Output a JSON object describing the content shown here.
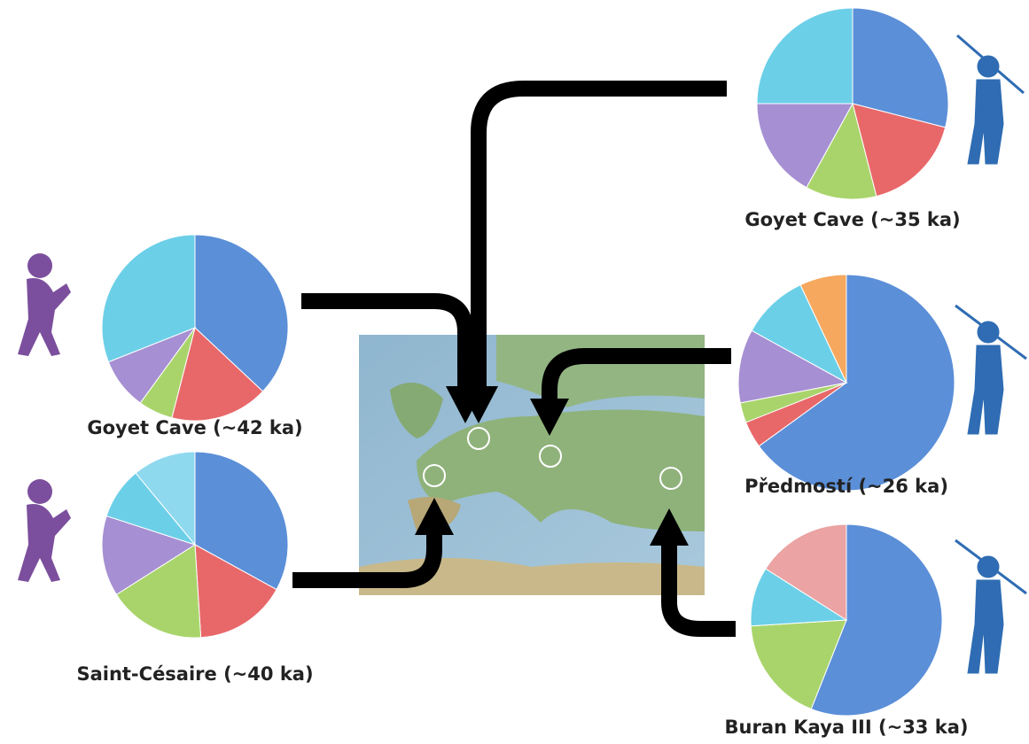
{
  "chart_data": [
    {
      "type": "pie",
      "title": "Goyet Cave (~42 ka)",
      "categories": [
        null,
        null,
        null,
        null,
        null
      ],
      "values": [
        37,
        17,
        6,
        9,
        31
      ],
      "colors": [
        "#5b8fd8",
        "#e8686a",
        "#a9d46b",
        "#a68fd2",
        "#6ccfe8"
      ]
    },
    {
      "type": "pie",
      "title": "Saint-Césaire (~40 ka)",
      "categories": [
        null,
        null,
        null,
        null,
        null,
        null
      ],
      "values": [
        33,
        16,
        17,
        14,
        9,
        11
      ],
      "colors": [
        "#5b8fd8",
        "#e8686a",
        "#a9d46b",
        "#a68fd2",
        "#6ccfe8",
        "#8fd9ef"
      ]
    },
    {
      "type": "pie",
      "title": "Goyet Cave (~35 ka)",
      "categories": [
        null,
        null,
        null,
        null,
        null
      ],
      "values": [
        29,
        17,
        12,
        17,
        25
      ],
      "colors": [
        "#5b8fd8",
        "#e8686a",
        "#a9d46b",
        "#a68fd2",
        "#6ccfe8"
      ]
    },
    {
      "type": "pie",
      "title": "Předmostí (~26 ka)",
      "categories": [
        null,
        null,
        null,
        null,
        null,
        null
      ],
      "values": [
        65,
        4,
        3,
        11,
        10,
        7
      ],
      "colors": [
        "#5b8fd8",
        "#e8686a",
        "#a9d46b",
        "#a68fd2",
        "#6ccfe8",
        "#f5a85e"
      ]
    },
    {
      "type": "pie",
      "title": "Buran Kaya III (~33 ka)",
      "categories": [
        null,
        null,
        null,
        null
      ],
      "values": [
        56,
        18,
        10,
        16
      ],
      "colors": [
        "#5b8fd8",
        "#a9d46b",
        "#6ccfe8",
        "#eba3a3"
      ]
    }
  ]
}
